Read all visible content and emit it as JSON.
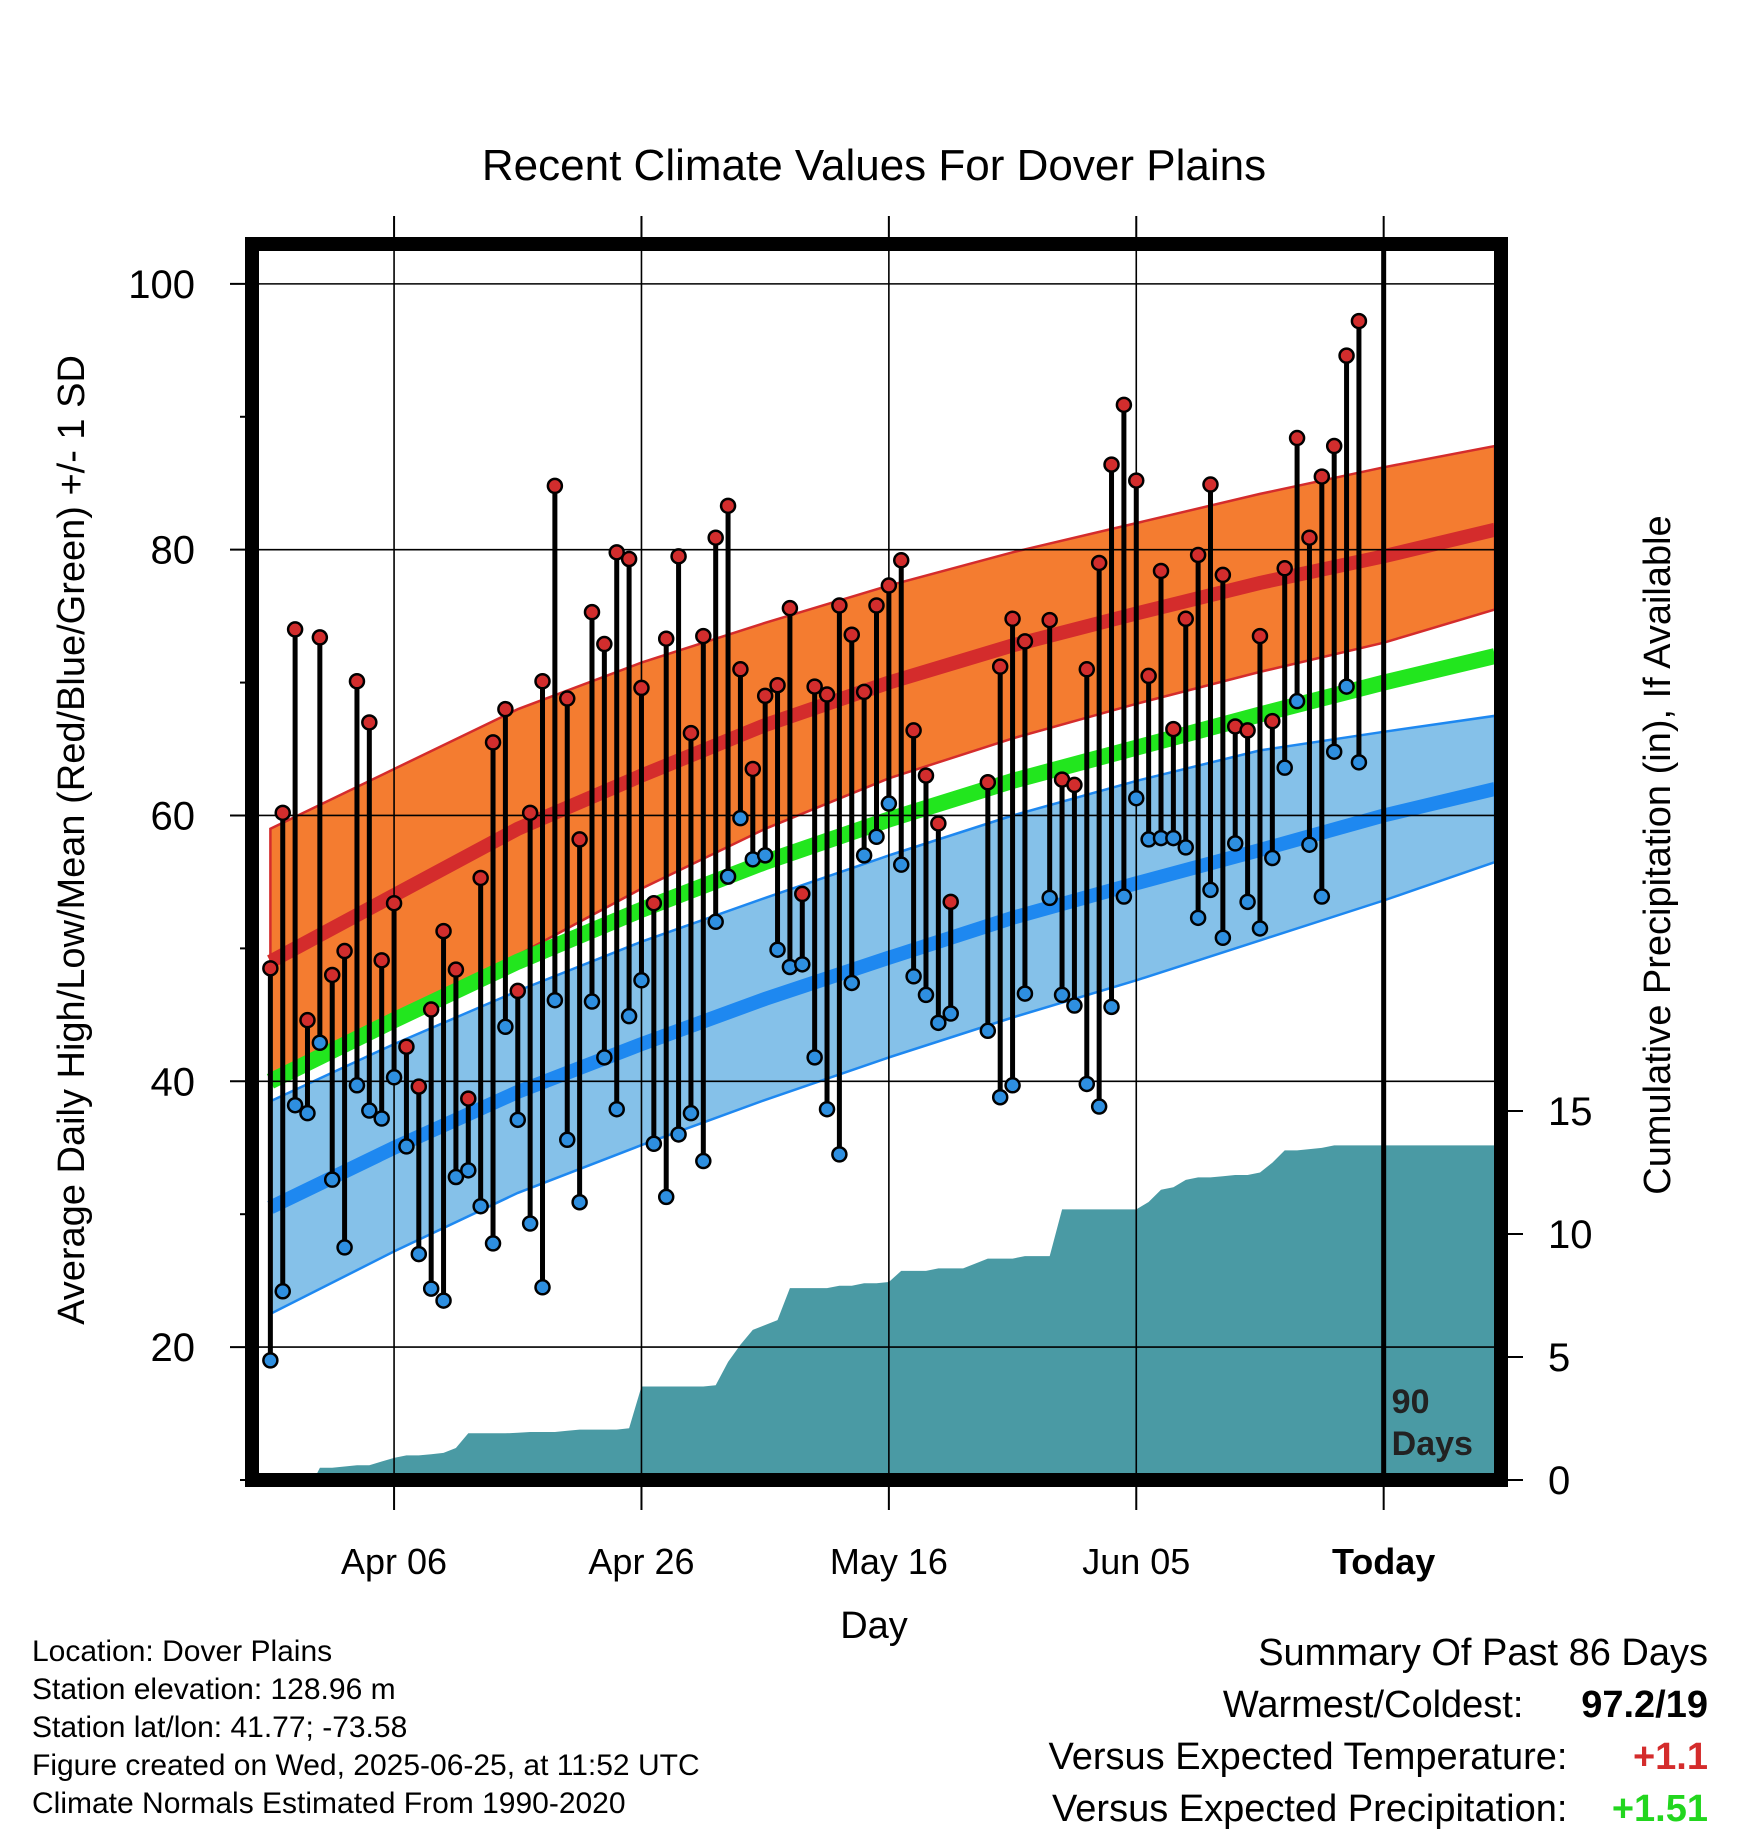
{
  "title": "Recent Climate Values For Dover Plains",
  "chart_data": {
    "type": "line",
    "title": "Recent Climate Values For Dover Plains",
    "xlabel": "Day",
    "ylabel": "Average Daily High/Low/Mean (Red/Blue/Green) +/- 1 SD",
    "ylabel_right": "Cumulative Precipitation (in), If Available",
    "x_tick_labels": [
      "Apr 06",
      "Apr 26",
      "May 16",
      "Jun 05",
      "Today"
    ],
    "x_tick_days": [
      10,
      30,
      50,
      70,
      90
    ],
    "x_range": [
      -1,
      99
    ],
    "ylim": [
      10,
      103
    ],
    "y_ticks": [
      20,
      40,
      60,
      80,
      100
    ],
    "y2_ticks": [
      0,
      5,
      10,
      15
    ],
    "y2_ticks_labels": [
      "0",
      "5",
      "10",
      "15"
    ],
    "grid": true,
    "today_marker_label": [
      "90",
      "Days"
    ],
    "colors": {
      "high_band": "#f47c30",
      "high_line": "#d42c2c",
      "low_band": "#85c1e9",
      "low_line": "#1e88f0",
      "mean_line": "#22e61e",
      "precip": "#4a9aa4",
      "high_dot": "#d22d2d",
      "low_dot": "#2e8fe0"
    },
    "normals": {
      "day": [
        0,
        10,
        20,
        30,
        40,
        50,
        60,
        70,
        80,
        90,
        99
      ],
      "high_mean": [
        49,
        54,
        59,
        63,
        66.8,
        70,
        72.8,
        75.2,
        77.5,
        79.5,
        81.5
      ],
      "high_upper": [
        59,
        63.5,
        68,
        71.5,
        74.5,
        77.3,
        79.8,
        82,
        84.2,
        86.2,
        87.8
      ],
      "high_lower": [
        40,
        44.5,
        49.5,
        54.5,
        59,
        62.8,
        65.8,
        68.4,
        70.8,
        73,
        75.5
      ],
      "mean": [
        40,
        44.6,
        49,
        52.9,
        56.5,
        59.7,
        62.6,
        65.1,
        67.6,
        70,
        72
      ],
      "low_mean": [
        30.5,
        35,
        39.2,
        42.8,
        46.2,
        49.3,
        52.3,
        54.9,
        57.4,
        60,
        62
      ],
      "low_upper": [
        38.5,
        42.8,
        46.8,
        50.5,
        53.8,
        57,
        60,
        62.6,
        64.9,
        66.3,
        67.5
      ],
      "low_lower": [
        22.5,
        27.2,
        31.6,
        35.2,
        38.6,
        41.8,
        44.8,
        47.6,
        50.6,
        53.6,
        56.5
      ]
    },
    "observations": [
      {
        "day": 0,
        "high": 48.5,
        "low": 19.0
      },
      {
        "day": 1,
        "high": 60.2,
        "low": 24.2
      },
      {
        "day": 2,
        "high": 74.0,
        "low": 38.2
      },
      {
        "day": 3,
        "high": 44.6,
        "low": 37.6
      },
      {
        "day": 4,
        "high": 73.4,
        "low": 42.9
      },
      {
        "day": 5,
        "high": 48.0,
        "low": 32.6
      },
      {
        "day": 6,
        "high": 49.8,
        "low": 27.5
      },
      {
        "day": 7,
        "high": 70.1,
        "low": 39.7
      },
      {
        "day": 8,
        "high": 67.0,
        "low": 37.8
      },
      {
        "day": 9,
        "high": 49.1,
        "low": 37.2
      },
      {
        "day": 10,
        "high": 53.4,
        "low": 40.3
      },
      {
        "day": 11,
        "high": 42.6,
        "low": 35.1
      },
      {
        "day": 12,
        "high": 39.6,
        "low": 27.0
      },
      {
        "day": 13,
        "high": 45.4,
        "low": 24.4
      },
      {
        "day": 14,
        "high": 51.3,
        "low": 23.5
      },
      {
        "day": 15,
        "high": 48.4,
        "low": 32.8
      },
      {
        "day": 16,
        "high": 38.7,
        "low": 33.3
      },
      {
        "day": 17,
        "high": 55.3,
        "low": 30.6
      },
      {
        "day": 18,
        "high": 65.5,
        "low": 27.8
      },
      {
        "day": 19,
        "high": 68.0,
        "low": 44.1
      },
      {
        "day": 20,
        "high": 46.8,
        "low": 37.1
      },
      {
        "day": 21,
        "high": 60.2,
        "low": 29.3
      },
      {
        "day": 22,
        "high": 70.1,
        "low": 24.5
      },
      {
        "day": 23,
        "high": 84.8,
        "low": 46.1
      },
      {
        "day": 24,
        "high": 68.8,
        "low": 35.6
      },
      {
        "day": 25,
        "high": 58.2,
        "low": 30.9
      },
      {
        "day": 26,
        "high": 75.3,
        "low": 46.0
      },
      {
        "day": 27,
        "high": 72.9,
        "low": 41.8
      },
      {
        "day": 28,
        "high": 79.8,
        "low": 37.9
      },
      {
        "day": 29,
        "high": 79.3,
        "low": 44.9
      },
      {
        "day": 30,
        "high": 69.6,
        "low": 47.6
      },
      {
        "day": 31,
        "high": 53.4,
        "low": 35.3
      },
      {
        "day": 32,
        "high": 73.3,
        "low": 31.3
      },
      {
        "day": 33,
        "high": 79.5,
        "low": 36.0
      },
      {
        "day": 34,
        "high": 66.2,
        "low": 37.6
      },
      {
        "day": 35,
        "high": 73.5,
        "low": 34.0
      },
      {
        "day": 36,
        "high": 80.9,
        "low": 52.0
      },
      {
        "day": 37,
        "high": 83.3,
        "low": 55.4
      },
      {
        "day": 38,
        "high": 71.0,
        "low": 59.8
      },
      {
        "day": 39,
        "high": 63.5,
        "low": 56.7
      },
      {
        "day": 40,
        "high": 69.0,
        "low": 57.0
      },
      {
        "day": 41,
        "high": 69.8,
        "low": 49.9
      },
      {
        "day": 42,
        "high": 75.6,
        "low": 48.6
      },
      {
        "day": 43,
        "high": 54.1,
        "low": 48.8
      },
      {
        "day": 44,
        "high": 69.7,
        "low": 41.8
      },
      {
        "day": 45,
        "high": 69.1,
        "low": 37.9
      },
      {
        "day": 46,
        "high": 75.8,
        "low": 34.5
      },
      {
        "day": 47,
        "high": 73.6,
        "low": 47.4
      },
      {
        "day": 48,
        "high": 69.3,
        "low": 57.0
      },
      {
        "day": 49,
        "high": 75.8,
        "low": 58.4
      },
      {
        "day": 50,
        "high": 77.3,
        "low": 60.9
      },
      {
        "day": 51,
        "high": 79.2,
        "low": 56.3
      },
      {
        "day": 52,
        "high": 66.4,
        "low": 47.9
      },
      {
        "day": 53,
        "high": 63.0,
        "low": 46.5
      },
      {
        "day": 54,
        "high": 59.4,
        "low": 44.4
      },
      {
        "day": 55,
        "high": 53.5,
        "low": 45.1
      },
      {
        "day": 58,
        "high": 62.5,
        "low": 43.8
      },
      {
        "day": 59,
        "high": 71.2,
        "low": 38.8
      },
      {
        "day": 60,
        "high": 74.8,
        "low": 39.7
      },
      {
        "day": 61,
        "high": 73.1,
        "low": 46.6
      },
      {
        "day": 63,
        "high": 74.7,
        "low": 53.8
      },
      {
        "day": 64,
        "high": 62.7,
        "low": 46.5
      },
      {
        "day": 65,
        "high": 62.3,
        "low": 45.7
      },
      {
        "day": 66,
        "high": 71.0,
        "low": 39.8
      },
      {
        "day": 67,
        "high": 79.0,
        "low": 38.1
      },
      {
        "day": 68,
        "high": 86.4,
        "low": 45.6
      },
      {
        "day": 69,
        "high": 90.9,
        "low": 53.9
      },
      {
        "day": 70,
        "high": 85.2,
        "low": 61.3
      },
      {
        "day": 71,
        "high": 70.5,
        "low": 58.2
      },
      {
        "day": 72,
        "high": 78.4,
        "low": 58.3
      },
      {
        "day": 73,
        "high": 66.5,
        "low": 58.3
      },
      {
        "day": 74,
        "high": 74.8,
        "low": 57.6
      },
      {
        "day": 75,
        "high": 79.6,
        "low": 52.3
      },
      {
        "day": 76,
        "high": 84.9,
        "low": 54.4
      },
      {
        "day": 77,
        "high": 78.1,
        "low": 50.8
      },
      {
        "day": 78,
        "high": 66.7,
        "low": 57.9
      },
      {
        "day": 79,
        "high": 66.4,
        "low": 53.5
      },
      {
        "day": 80,
        "high": 73.5,
        "low": 51.5
      },
      {
        "day": 81,
        "high": 67.1,
        "low": 56.8
      },
      {
        "day": 82,
        "high": 78.6,
        "low": 63.6
      },
      {
        "day": 83,
        "high": 88.4,
        "low": 68.6
      },
      {
        "day": 84,
        "high": 80.9,
        "low": 57.8
      },
      {
        "day": 85,
        "high": 85.5,
        "low": 53.9
      },
      {
        "day": 86,
        "high": 87.8,
        "low": 64.8
      },
      {
        "day": 87,
        "high": 94.6,
        "low": 69.7
      },
      {
        "day": 88,
        "high": 97.2,
        "low": 64.0
      }
    ],
    "precipitation_cumulative": {
      "day": [
        3.5,
        4,
        5,
        6,
        7,
        8,
        9,
        10,
        11,
        12,
        13,
        14,
        15,
        16,
        17,
        18,
        19,
        20,
        21,
        22,
        23,
        24,
        25,
        26,
        27,
        28,
        29,
        30,
        31,
        32,
        33,
        34,
        35,
        36,
        37,
        38,
        39,
        40,
        41,
        42,
        43,
        44,
        45,
        46,
        47,
        48,
        49,
        50,
        51,
        52,
        53,
        54,
        55,
        56,
        57,
        58,
        59,
        60,
        61,
        62,
        63,
        64,
        65,
        66,
        67,
        68,
        69,
        70,
        71,
        72,
        73,
        74,
        75,
        76,
        77,
        78,
        79,
        80,
        81,
        82,
        83,
        84,
        85,
        86,
        87,
        88,
        89,
        90,
        91,
        92,
        93,
        94,
        95,
        96,
        97,
        98,
        99
      ],
      "total_in": [
        0,
        0.5,
        0.5,
        0.55,
        0.6,
        0.6,
        0.75,
        0.9,
        1.0,
        1.0,
        1.05,
        1.1,
        1.3,
        1.9,
        1.9,
        1.9,
        1.9,
        1.92,
        1.95,
        1.95,
        1.95,
        2.0,
        2.05,
        2.05,
        2.05,
        2.05,
        2.1,
        3.8,
        3.8,
        3.8,
        3.8,
        3.8,
        3.8,
        3.85,
        4.8,
        5.5,
        6.1,
        6.3,
        6.5,
        7.8,
        7.8,
        7.8,
        7.8,
        7.9,
        7.9,
        8.0,
        8.0,
        8.05,
        8.5,
        8.5,
        8.5,
        8.6,
        8.6,
        8.6,
        8.8,
        9.0,
        9.0,
        9.0,
        9.1,
        9.1,
        9.1,
        11.0,
        11.0,
        11.0,
        11.0,
        11.0,
        11.0,
        11.0,
        11.3,
        11.8,
        11.9,
        12.2,
        12.3,
        12.3,
        12.35,
        12.4,
        12.4,
        12.5,
        12.9,
        13.4,
        13.4,
        13.45,
        13.5,
        13.6,
        13.6,
        13.6,
        13.6,
        13.6,
        13.6,
        13.6,
        13.6,
        13.6,
        13.6,
        13.6,
        13.6,
        13.6,
        13.6
      ]
    }
  },
  "footer": {
    "location": "Location: Dover Plains",
    "elevation": "Station elevation: 128.96 m",
    "latlon": "Station lat/lon: 41.77; -73.58",
    "created": "Figure created on Wed, 2025-06-25, at 11:52 UTC",
    "normals": "Climate Normals Estimated From 1990-2020"
  },
  "summary": {
    "heading": "Summary Of Past 86 Days",
    "warmest_coldest_label": "Warmest/Coldest:",
    "warmest_coldest_value": "97.2/19",
    "temp_label": "Versus Expected Temperature:",
    "temp_value": "+1.1",
    "temp_color": "#d42c2c",
    "precip_label": "Versus Expected Precipitation:",
    "precip_value": "+1.51",
    "precip_color": "#22d61e"
  }
}
